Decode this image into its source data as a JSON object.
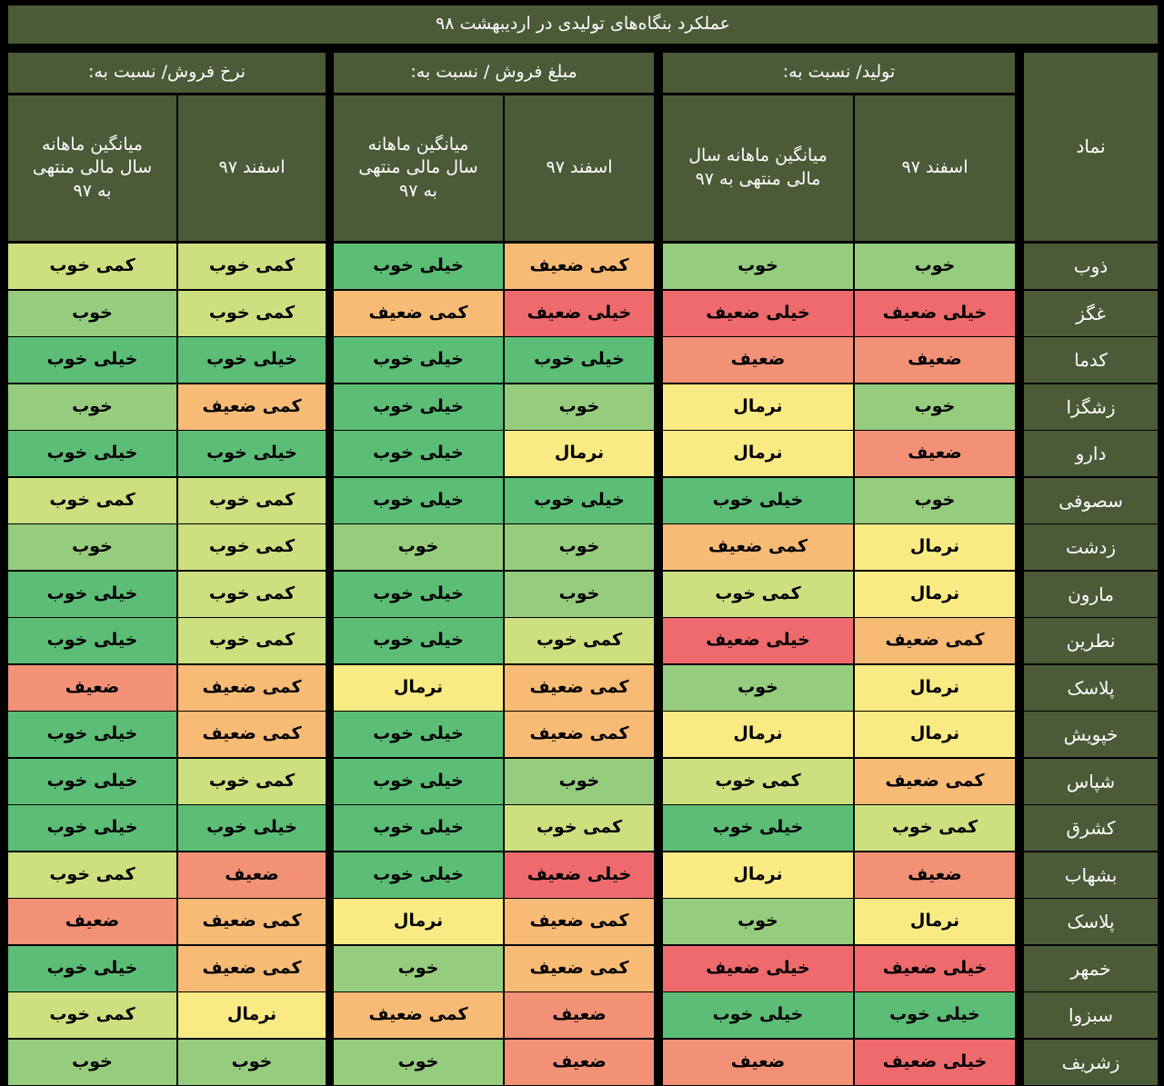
{
  "title": "عملکرد بنگاه‌های تولیدی در اردیبهشت ۹۸",
  "headers": {
    "symbol": "نماد",
    "groups": [
      "تولید/ نسبت به:",
      "مبلغ فروش / نسبت به:",
      "نرخ فروش/ نسبت به:"
    ],
    "subs": [
      "اسفند ۹۷",
      "میانگین ماهانه سال مالی منتهی به ۹۷",
      "اسفند ۹۷",
      "میانگین ماهانه سال مالی منتهی به ۹۷",
      "اسفند ۹۷",
      "میانگین ماهانه سال مالی منتهی به ۹۷"
    ]
  },
  "colors": {
    "خیلی خوب": "#5cbd76",
    "خوب": "#96cc7e",
    "کمی خوب": "#cce080",
    "نرمال": "#faea83",
    "کمی ضعیف": "#f8bb76",
    "ضعیف": "#f39176",
    "خیلی ضعیف": "#ee6a6c",
    "header_bg": "#4b5a37",
    "grid": "#000000"
  },
  "rows": [
    {
      "symbol": "ذوب",
      "values": [
        "خوب",
        "خوب",
        "کمی ضعیف",
        "خیلی خوب",
        "کمی خوب",
        "کمی خوب"
      ]
    },
    {
      "symbol": "غگز",
      "values": [
        "خیلی ضعیف",
        "خیلی ضعیف",
        "خیلی ضعیف",
        "کمی ضعیف",
        "کمی خوب",
        "خوب"
      ]
    },
    {
      "symbol": "کدما",
      "values": [
        "ضعیف",
        "ضعیف",
        "خیلی خوب",
        "خیلی خوب",
        "خیلی خوب",
        "خیلی خوب"
      ]
    },
    {
      "symbol": "زشگزا",
      "values": [
        "خوب",
        "نرمال",
        "خوب",
        "خیلی خوب",
        "کمی ضعیف",
        "خوب"
      ]
    },
    {
      "symbol": "دارو",
      "values": [
        "ضعیف",
        "نرمال",
        "نرمال",
        "خیلی خوب",
        "خیلی خوب",
        "خیلی خوب"
      ]
    },
    {
      "symbol": "سصوفی",
      "values": [
        "خوب",
        "خیلی خوب",
        "خیلی خوب",
        "خیلی خوب",
        "کمی خوب",
        "کمی خوب"
      ]
    },
    {
      "symbol": "زدشت",
      "values": [
        "نرمال",
        "کمی ضعیف",
        "خوب",
        "خوب",
        "کمی خوب",
        "خوب"
      ]
    },
    {
      "symbol": "مارون",
      "values": [
        "نرمال",
        "کمی خوب",
        "خوب",
        "خیلی خوب",
        "کمی خوب",
        "خیلی خوب"
      ]
    },
    {
      "symbol": "نطرین",
      "values": [
        "کمی ضعیف",
        "خیلی ضعیف",
        "کمی خوب",
        "خیلی خوب",
        "کمی خوب",
        "خیلی خوب"
      ]
    },
    {
      "symbol": "پلاسک",
      "values": [
        "نرمال",
        "خوب",
        "کمی ضعیف",
        "نرمال",
        "کمی ضعیف",
        "ضعیف"
      ]
    },
    {
      "symbol": "خپویش",
      "values": [
        "نرمال",
        "نرمال",
        "کمی ضعیف",
        "خیلی خوب",
        "کمی ضعیف",
        "خیلی خوب"
      ]
    },
    {
      "symbol": "شپاس",
      "values": [
        "کمی ضعیف",
        "کمی خوب",
        "خوب",
        "خیلی خوب",
        "کمی خوب",
        "خیلی خوب"
      ]
    },
    {
      "symbol": "کشرق",
      "values": [
        "کمی خوب",
        "خیلی خوب",
        "کمی خوب",
        "خیلی خوب",
        "خیلی خوب",
        "خیلی خوب"
      ]
    },
    {
      "symbol": "بشهاب",
      "values": [
        "ضعیف",
        "نرمال",
        "خیلی ضعیف",
        "خیلی خوب",
        "ضعیف",
        "کمی خوب"
      ]
    },
    {
      "symbol": "پلاسک",
      "values": [
        "نرمال",
        "خوب",
        "کمی ضعیف",
        "نرمال",
        "کمی ضعیف",
        "ضعیف"
      ]
    },
    {
      "symbol": "خمهر",
      "values": [
        "خیلی ضعیف",
        "خیلی ضعیف",
        "کمی ضعیف",
        "خوب",
        "کمی ضعیف",
        "خیلی خوب"
      ]
    },
    {
      "symbol": "سبزوا",
      "values": [
        "خیلی خوب",
        "خیلی خوب",
        "ضعیف",
        "کمی ضعیف",
        "نرمال",
        "کمی خوب"
      ]
    },
    {
      "symbol": "زشریف",
      "values": [
        "خیلی ضعیف",
        "ضعیف",
        "ضعیف",
        "خوب",
        "خوب",
        "خوب"
      ]
    }
  ]
}
